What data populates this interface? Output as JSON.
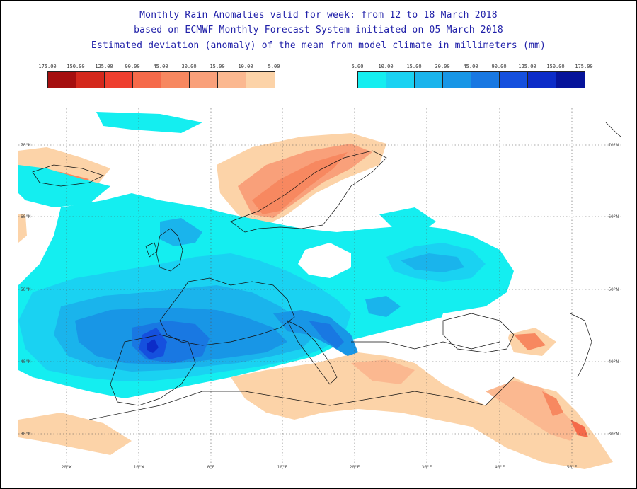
{
  "title": {
    "line1": "Monthly Rain Anomalies valid for week: from 12 to 18 March 2018",
    "line2": "based on ECMWF Monthly Forecast System initiated on 05 March 2018",
    "line3": "Estimated deviation (anomaly) of the mean from model climate in millimeters (mm)"
  },
  "legend_dry": {
    "labels": [
      "175.00",
      "150.00",
      "125.00",
      "90.00",
      "45.00",
      "30.00",
      "15.00",
      "10.00",
      "5.00"
    ],
    "colors": [
      "#a50f0f",
      "#d4281c",
      "#ee3f2f",
      "#f56a4a",
      "#f78860",
      "#f9a07a",
      "#fbb890",
      "#fcd3a8"
    ]
  },
  "legend_wet": {
    "labels": [
      "5.00",
      "10.00",
      "15.00",
      "30.00",
      "45.00",
      "90.00",
      "125.00",
      "150.00",
      "175.00"
    ],
    "colors": [
      "#14eef0",
      "#1ad2f2",
      "#1ab4ec",
      "#1896e6",
      "#1978e2",
      "#1550de",
      "#0c2cc8",
      "#06139a"
    ]
  },
  "axes": {
    "lon_labels": [
      "20°W",
      "10°W",
      "0°E",
      "10°E",
      "20°E",
      "30°E",
      "40°E",
      "50°E"
    ],
    "lat_labels": [
      "70°N",
      "60°N",
      "50°N",
      "40°N",
      "30°N"
    ]
  }
}
